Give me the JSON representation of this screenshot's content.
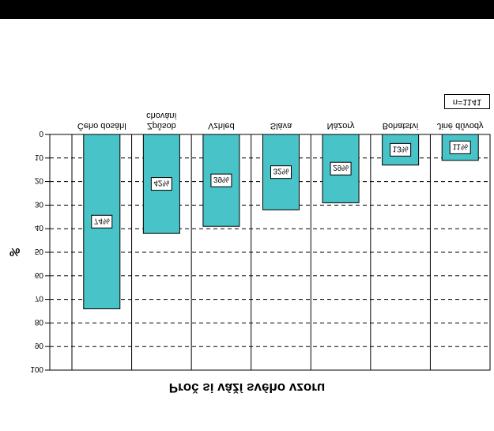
{
  "chart_data": {
    "type": "bar",
    "title": "Proč si váží svého vzoru",
    "ylabel": "%",
    "note": "n=1141",
    "categories": [
      "Čeho dosáhl",
      "Způsob chování",
      "Vzhled",
      "Sláva",
      "Názory",
      "Bohatství",
      "Jiné důvody"
    ],
    "values": [
      74,
      42,
      39,
      32,
      29,
      13,
      11
    ],
    "data_labels": [
      "74%",
      "42%",
      "39%",
      "32%",
      "29%",
      "13%",
      "11%"
    ],
    "yticks": [
      "0",
      "10",
      "20",
      "30",
      "40",
      "50",
      "60",
      "70",
      "80",
      "90",
      "100"
    ],
    "ylim": [
      0,
      100
    ],
    "bar_color": "#48c4c8",
    "grid": true,
    "orientation": "mirrored vertically (upside-down text)"
  }
}
